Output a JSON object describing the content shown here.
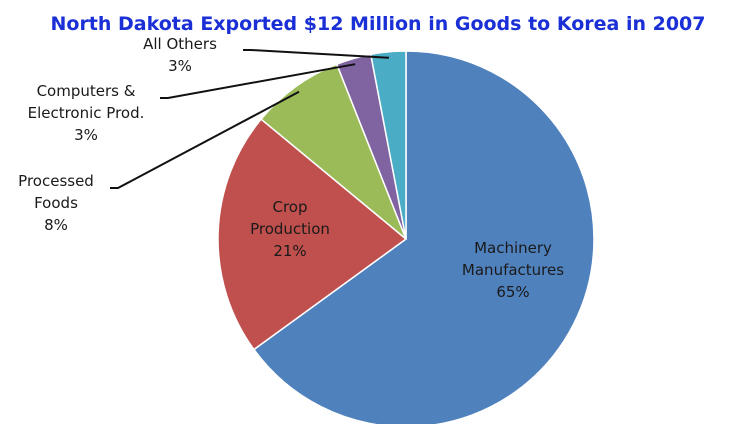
{
  "chart_data": {
    "type": "pie",
    "title": "North Dakota Exported $12 Million in Goods to Korea in 2007",
    "title_color": "#1a2fd6",
    "start_angle_deg": 0,
    "direction": "clockwise",
    "slices": [
      {
        "label_lines": [
          "Machinery",
          "Manufactures"
        ],
        "value_text": "65%",
        "value": 65,
        "color": "#4f81bd"
      },
      {
        "label_lines": [
          "Crop",
          "Production"
        ],
        "value_text": "21%",
        "value": 21,
        "color": "#c0504d"
      },
      {
        "label_lines": [
          "Processed",
          "Foods"
        ],
        "value_text": "8%",
        "value": 8,
        "color": "#9bbb59"
      },
      {
        "label_lines": [
          "Computers &",
          "Electronic Prod."
        ],
        "value_text": "3%",
        "value": 3,
        "color": "#8064a2"
      },
      {
        "label_lines": [
          "All Others"
        ],
        "value_text": "3%",
        "value": 3,
        "color": "#4bacc6"
      }
    ]
  }
}
